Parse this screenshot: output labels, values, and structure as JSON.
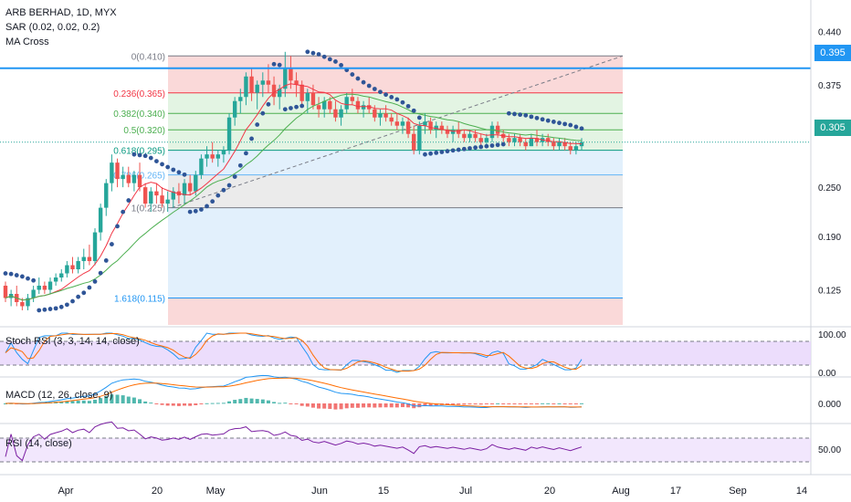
{
  "header": {
    "symbol": "ARB BERHAD, 1D, MYX",
    "sar_label": "SAR (0.02, 0.02, 0.2)",
    "ma_label": "MA Cross"
  },
  "price_tags": {
    "horizontal_line": "0.395",
    "last_price": "0.305"
  },
  "colors": {
    "up": "#26a69a",
    "down": "#ef5350",
    "sar": "#2f5597",
    "ma_fast": "#f23645",
    "ma_slow": "#4caf50",
    "hline": "#2196f3",
    "last_price": "#26a69a",
    "fib_red": "#f8c9c9",
    "fib_green": "#d7efd7",
    "fib_gray": "#e3e3e3",
    "fib_blue": "#d6e9fb",
    "osc_band": "#e9d7fb",
    "stoch_k": "#2196f3",
    "stoch_d": "#ff6d00",
    "macd_line": "#2196f3",
    "signal_line": "#ff6d00",
    "rsi_line": "#7b1fa2"
  },
  "chart_data": {
    "type": "candlestick",
    "main_panel": {
      "y_ticks": [
        "0.440",
        "0.375",
        "0.305",
        "0.250",
        "0.190",
        "0.125"
      ],
      "fib_levels": [
        {
          "label": "0(0.410)",
          "value": 0.41
        },
        {
          "label": "0.236(0.365)",
          "value": 0.365
        },
        {
          "label": "0.382(0.340)",
          "value": 0.34
        },
        {
          "label": "0.5(0.320)",
          "value": 0.32
        },
        {
          "label": "0.618(0.295)",
          "value": 0.295
        },
        {
          "label": "0.786(0.265)",
          "value": 0.265
        },
        {
          "label": "1(0.225)",
          "value": 0.225
        },
        {
          "label": "1.618(0.115)",
          "value": 0.115
        }
      ],
      "horizontal_line": 0.395,
      "candles": [
        [
          0.13,
          0.135,
          0.11,
          0.115
        ],
        [
          0.115,
          0.125,
          0.105,
          0.12
        ],
        [
          0.12,
          0.13,
          0.105,
          0.11
        ],
        [
          0.11,
          0.115,
          0.1,
          0.105
        ],
        [
          0.105,
          0.12,
          0.1,
          0.115
        ],
        [
          0.115,
          0.13,
          0.11,
          0.125
        ],
        [
          0.125,
          0.14,
          0.12,
          0.13
        ],
        [
          0.13,
          0.135,
          0.12,
          0.125
        ],
        [
          0.125,
          0.14,
          0.12,
          0.135
        ],
        [
          0.135,
          0.145,
          0.13,
          0.14
        ],
        [
          0.14,
          0.15,
          0.135,
          0.145
        ],
        [
          0.145,
          0.16,
          0.14,
          0.155
        ],
        [
          0.155,
          0.165,
          0.145,
          0.15
        ],
        [
          0.15,
          0.165,
          0.145,
          0.16
        ],
        [
          0.16,
          0.175,
          0.15,
          0.165
        ],
        [
          0.165,
          0.18,
          0.155,
          0.16
        ],
        [
          0.16,
          0.2,
          0.155,
          0.195
        ],
        [
          0.195,
          0.23,
          0.185,
          0.225
        ],
        [
          0.225,
          0.26,
          0.215,
          0.255
        ],
        [
          0.255,
          0.29,
          0.245,
          0.28
        ],
        [
          0.28,
          0.285,
          0.25,
          0.26
        ],
        [
          0.26,
          0.275,
          0.25,
          0.265
        ],
        [
          0.265,
          0.275,
          0.25,
          0.255
        ],
        [
          0.255,
          0.27,
          0.245,
          0.265
        ],
        [
          0.265,
          0.28,
          0.245,
          0.25
        ],
        [
          0.25,
          0.255,
          0.225,
          0.23
        ],
        [
          0.23,
          0.25,
          0.22,
          0.245
        ],
        [
          0.245,
          0.255,
          0.23,
          0.24
        ],
        [
          0.24,
          0.25,
          0.225,
          0.23
        ],
        [
          0.23,
          0.245,
          0.22,
          0.235
        ],
        [
          0.235,
          0.25,
          0.225,
          0.245
        ],
        [
          0.245,
          0.255,
          0.23,
          0.24
        ],
        [
          0.24,
          0.26,
          0.23,
          0.255
        ],
        [
          0.255,
          0.265,
          0.24,
          0.245
        ],
        [
          0.245,
          0.27,
          0.24,
          0.265
        ],
        [
          0.265,
          0.29,
          0.26,
          0.285
        ],
        [
          0.285,
          0.3,
          0.275,
          0.29
        ],
        [
          0.29,
          0.305,
          0.28,
          0.285
        ],
        [
          0.285,
          0.295,
          0.275,
          0.29
        ],
        [
          0.29,
          0.3,
          0.28,
          0.295
        ],
        [
          0.295,
          0.34,
          0.29,
          0.335
        ],
        [
          0.335,
          0.36,
          0.325,
          0.355
        ],
        [
          0.355,
          0.37,
          0.34,
          0.36
        ],
        [
          0.36,
          0.39,
          0.35,
          0.385
        ],
        [
          0.385,
          0.395,
          0.355,
          0.365
        ],
        [
          0.365,
          0.38,
          0.345,
          0.375
        ],
        [
          0.375,
          0.39,
          0.36,
          0.38
        ],
        [
          0.38,
          0.4,
          0.365,
          0.375
        ],
        [
          0.375,
          0.385,
          0.35,
          0.36
        ],
        [
          0.36,
          0.375,
          0.345,
          0.37
        ],
        [
          0.37,
          0.415,
          0.36,
          0.395
        ],
        [
          0.395,
          0.41,
          0.37,
          0.38
        ],
        [
          0.38,
          0.39,
          0.36,
          0.375
        ],
        [
          0.375,
          0.38,
          0.35,
          0.355
        ],
        [
          0.355,
          0.37,
          0.34,
          0.365
        ],
        [
          0.365,
          0.375,
          0.345,
          0.35
        ],
        [
          0.35,
          0.36,
          0.335,
          0.345
        ],
        [
          0.345,
          0.36,
          0.335,
          0.355
        ],
        [
          0.355,
          0.36,
          0.34,
          0.345
        ],
        [
          0.345,
          0.355,
          0.33,
          0.335
        ],
        [
          0.335,
          0.35,
          0.325,
          0.345
        ],
        [
          0.345,
          0.365,
          0.34,
          0.36
        ],
        [
          0.36,
          0.37,
          0.35,
          0.355
        ],
        [
          0.355,
          0.36,
          0.34,
          0.345
        ],
        [
          0.345,
          0.355,
          0.335,
          0.35
        ],
        [
          0.35,
          0.36,
          0.34,
          0.345
        ],
        [
          0.345,
          0.35,
          0.33,
          0.335
        ],
        [
          0.335,
          0.345,
          0.325,
          0.34
        ],
        [
          0.34,
          0.35,
          0.33,
          0.335
        ],
        [
          0.335,
          0.34,
          0.325,
          0.33
        ],
        [
          0.33,
          0.34,
          0.32,
          0.325
        ],
        [
          0.325,
          0.335,
          0.315,
          0.33
        ],
        [
          0.33,
          0.335,
          0.31,
          0.315
        ],
        [
          0.315,
          0.325,
          0.29,
          0.295
        ],
        [
          0.295,
          0.33,
          0.29,
          0.325
        ],
        [
          0.325,
          0.34,
          0.315,
          0.33
        ],
        [
          0.33,
          0.335,
          0.315,
          0.32
        ],
        [
          0.32,
          0.33,
          0.31,
          0.325
        ],
        [
          0.325,
          0.33,
          0.315,
          0.32
        ],
        [
          0.32,
          0.325,
          0.31,
          0.315
        ],
        [
          0.315,
          0.325,
          0.305,
          0.32
        ],
        [
          0.32,
          0.33,
          0.31,
          0.315
        ],
        [
          0.315,
          0.32,
          0.305,
          0.31
        ],
        [
          0.31,
          0.32,
          0.305,
          0.315
        ],
        [
          0.315,
          0.32,
          0.305,
          0.31
        ],
        [
          0.31,
          0.315,
          0.3,
          0.305
        ],
        [
          0.305,
          0.315,
          0.3,
          0.31
        ],
        [
          0.31,
          0.33,
          0.305,
          0.325
        ],
        [
          0.325,
          0.33,
          0.31,
          0.315
        ],
        [
          0.315,
          0.32,
          0.305,
          0.31
        ],
        [
          0.31,
          0.315,
          0.3,
          0.305
        ],
        [
          0.305,
          0.315,
          0.3,
          0.31
        ],
        [
          0.31,
          0.315,
          0.3,
          0.305
        ],
        [
          0.305,
          0.31,
          0.295,
          0.3
        ],
        [
          0.3,
          0.315,
          0.3,
          0.31
        ],
        [
          0.31,
          0.32,
          0.3,
          0.305
        ],
        [
          0.305,
          0.315,
          0.3,
          0.31
        ],
        [
          0.31,
          0.315,
          0.3,
          0.305
        ],
        [
          0.305,
          0.31,
          0.295,
          0.3
        ],
        [
          0.3,
          0.31,
          0.295,
          0.305
        ],
        [
          0.305,
          0.31,
          0.295,
          0.3
        ],
        [
          0.3,
          0.305,
          0.29,
          0.295
        ],
        [
          0.295,
          0.305,
          0.29,
          0.3
        ],
        [
          0.3,
          0.31,
          0.295,
          0.305
        ]
      ]
    },
    "x_ticks": [
      "Apr",
      "20",
      "May",
      "Jun",
      "15",
      "Jul",
      "20",
      "Aug",
      "17",
      "Sep",
      "14"
    ],
    "stoch_rsi": {
      "label": "Stoch RSI (3, 3, 14, 14, close)",
      "y_ticks": [
        "100.00",
        "0.00"
      ],
      "bands": [
        80,
        20
      ]
    },
    "macd": {
      "label": "MACD (12, 26, close, 9)",
      "y_ticks": [
        "0.000"
      ]
    },
    "rsi": {
      "label": "RSI (14, close)",
      "y_ticks": [
        "50.00"
      ],
      "bands": [
        70,
        30
      ]
    }
  }
}
